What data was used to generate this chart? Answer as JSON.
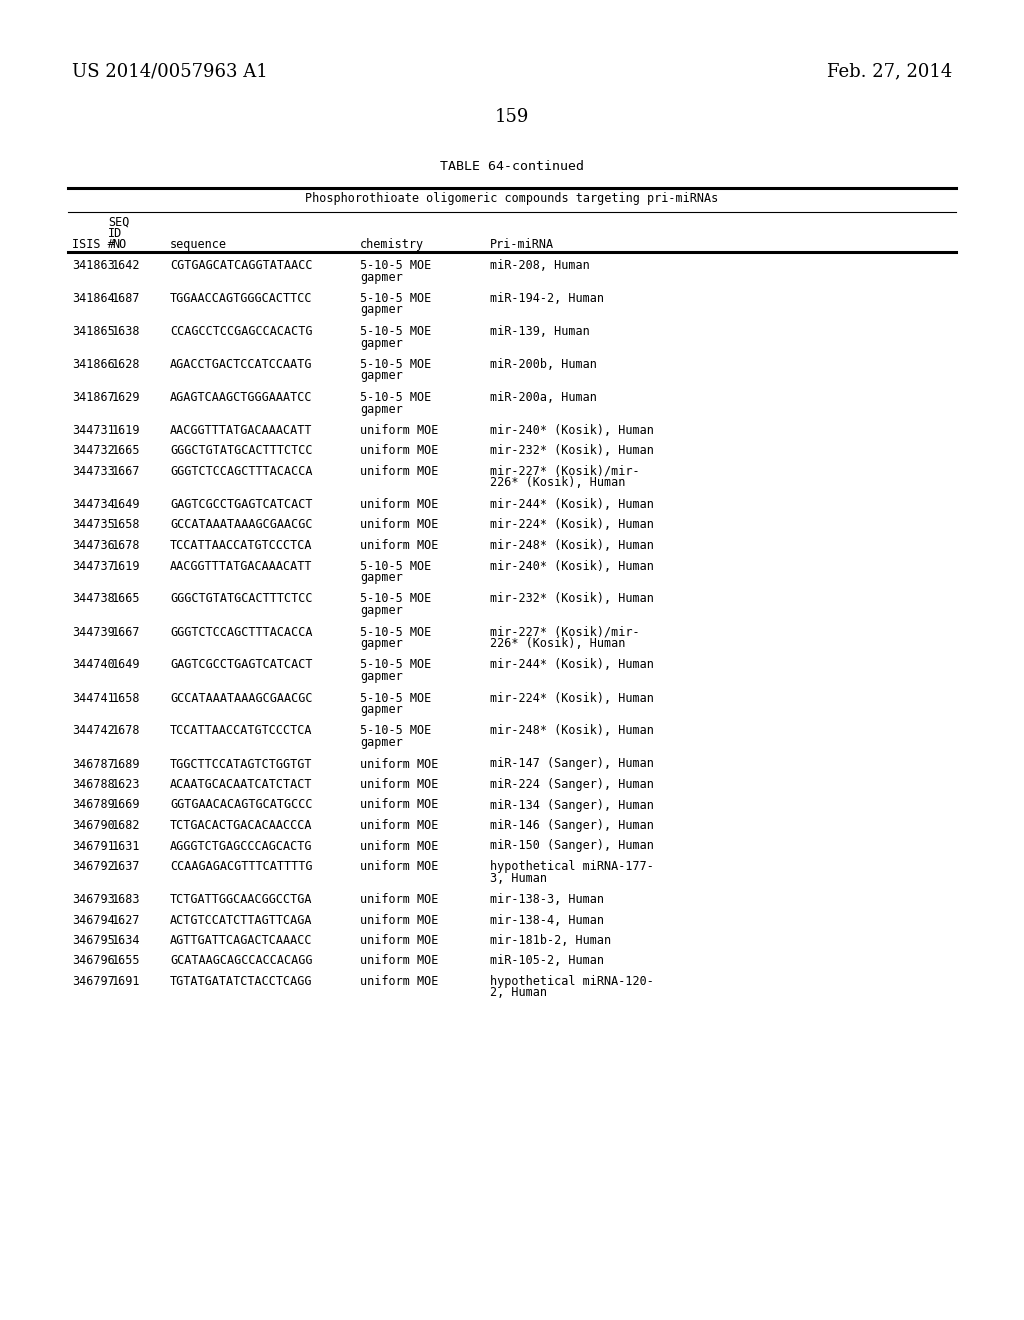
{
  "page_number": "159",
  "left_header": "US 2014/0057963 A1",
  "right_header": "Feb. 27, 2014",
  "table_title": "TABLE 64-continued",
  "table_subtitle": "Phosphorothioate oligomeric compounds targeting pri-miRNAs",
  "rows": [
    [
      "341863",
      "1642",
      "CGTGAGCATCAGGTATAACC",
      "5-10-5 MOE\ngapmer",
      "miR-208, Human"
    ],
    [
      "341864",
      "1687",
      "TGGAACCAGTGGGCACTTCC",
      "5-10-5 MOE\ngapmer",
      "miR-194-2, Human"
    ],
    [
      "341865",
      "1638",
      "CCAGCCTCCGAGCCACACTG",
      "5-10-5 MOE\ngapmer",
      "miR-139, Human"
    ],
    [
      "341866",
      "1628",
      "AGACCTGACTCCATCCAATG",
      "5-10-5 MOE\ngapmer",
      "miR-200b, Human"
    ],
    [
      "341867",
      "1629",
      "AGAGTCAAGCTGGGAAATCC",
      "5-10-5 MOE\ngapmer",
      "miR-200a, Human"
    ],
    [
      "344731",
      "1619",
      "AACGGTTTATGACAAACATT",
      "uniform MOE",
      "mir-240* (Kosik), Human"
    ],
    [
      "344732",
      "1665",
      "GGGCTGTATGCACTTTCTCC",
      "uniform MOE",
      "mir-232* (Kosik), Human"
    ],
    [
      "344733",
      "1667",
      "GGGTCTCCAGCTTTACACCA",
      "uniform MOE",
      "mir-227* (Kosik)/mir-\n226* (Kosik), Human"
    ],
    [
      "344734",
      "1649",
      "GAGTCGCCTGAGTCATCACT",
      "uniform MOE",
      "mir-244* (Kosik), Human"
    ],
    [
      "344735",
      "1658",
      "GCCATAAATAAAGCGAACGC",
      "uniform MOE",
      "mir-224* (Kosik), Human"
    ],
    [
      "344736",
      "1678",
      "TCCATTAACCATGTCCCTCA",
      "uniform MOE",
      "mir-248* (Kosik), Human"
    ],
    [
      "344737",
      "1619",
      "AACGGTTTATGACAAACATT",
      "5-10-5 MOE\ngapmer",
      "mir-240* (Kosik), Human"
    ],
    [
      "344738",
      "1665",
      "GGGCTGTATGCACTTTCTCC",
      "5-10-5 MOE\ngapmer",
      "mir-232* (Kosik), Human"
    ],
    [
      "344739",
      "1667",
      "GGGTCTCCAGCTTTACACCA",
      "5-10-5 MOE\ngapmer",
      "mir-227* (Kosik)/mir-\n226* (Kosik), Human"
    ],
    [
      "344740",
      "1649",
      "GAGTCGCCTGAGTCATCACT",
      "5-10-5 MOE\ngapmer",
      "mir-244* (Kosik), Human"
    ],
    [
      "344741",
      "1658",
      "GCCATAAATAAAGCGAACGC",
      "5-10-5 MOE\ngapmer",
      "mir-224* (Kosik), Human"
    ],
    [
      "344742",
      "1678",
      "TCCATTAACCATGTCCCTCA",
      "5-10-5 MOE\ngapmer",
      "mir-248* (Kosik), Human"
    ],
    [
      "346787",
      "1689",
      "TGGCTTCCATAGTCTGGTGT",
      "uniform MOE",
      "miR-147 (Sanger), Human"
    ],
    [
      "346788",
      "1623",
      "ACAATGCACAATCATCTACT",
      "uniform MOE",
      "miR-224 (Sanger), Human"
    ],
    [
      "346789",
      "1669",
      "GGTGAACACAGTGCATGCCC",
      "uniform MOE",
      "miR-134 (Sanger), Human"
    ],
    [
      "346790",
      "1682",
      "TCTGACACTGACACAACCCA",
      "uniform MOE",
      "miR-146 (Sanger), Human"
    ],
    [
      "346791",
      "1631",
      "AGGGTCTGAGCCCAGCACTG",
      "uniform MOE",
      "miR-150 (Sanger), Human"
    ],
    [
      "346792",
      "1637",
      "CCAAGAGACGTTTCATTTTG",
      "uniform MOE",
      "hypothetical miRNA-177-\n3, Human"
    ],
    [
      "346793",
      "1683",
      "TCTGATTGGCAACGGCCTGA",
      "uniform MOE",
      "mir-138-3, Human"
    ],
    [
      "346794",
      "1627",
      "ACTGTCCATCTTAGTTCAGA",
      "uniform MOE",
      "mir-138-4, Human"
    ],
    [
      "346795",
      "1634",
      "AGTTGATTCAGACTCAAACC",
      "uniform MOE",
      "mir-181b-2, Human"
    ],
    [
      "346796",
      "1655",
      "GCATAAGCAGCCACCACAGG",
      "uniform MOE",
      "miR-105-2, Human"
    ],
    [
      "346797",
      "1691",
      "TGTATGATATCTACCTCAGG",
      "uniform MOE",
      "hypothetical miRNA-120-\n2, Human"
    ]
  ],
  "bg_color": "#ffffff",
  "text_color": "#000000"
}
